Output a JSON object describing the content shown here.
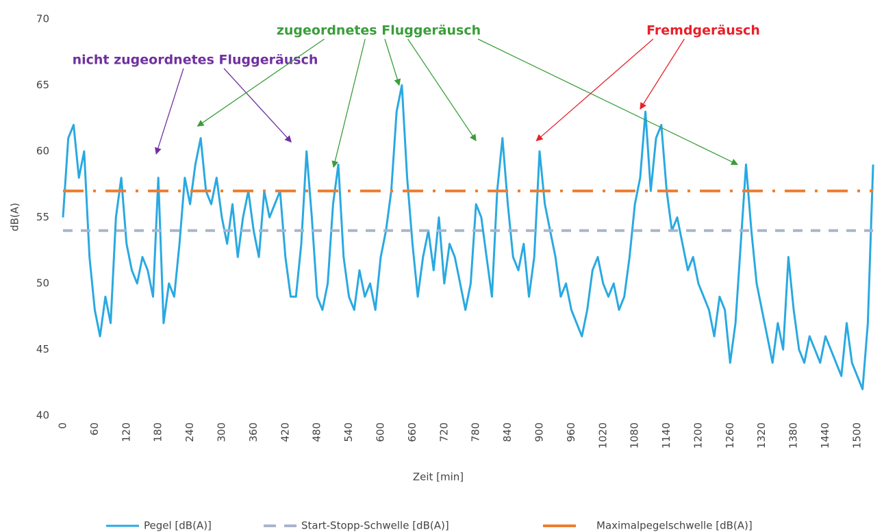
{
  "chart_data": {
    "type": "line",
    "x_label": "Zeit [min]",
    "y_label": "dB(A)",
    "xlim": [
      0,
      1535
    ],
    "ylim": [
      40,
      70
    ],
    "xticks": [
      0,
      60,
      120,
      180,
      240,
      300,
      360,
      420,
      480,
      540,
      600,
      660,
      720,
      780,
      840,
      900,
      960,
      1020,
      1080,
      1140,
      1200,
      1260,
      1320,
      1380,
      1440,
      1500
    ],
    "yticks": [
      40,
      45,
      50,
      55,
      60,
      65,
      70
    ],
    "grid": false,
    "legend": "bottom",
    "series": [
      {
        "name": "Pegel [dB(A)]",
        "color": "#29a9e1",
        "style": "solid",
        "x": [
          0,
          10,
          20,
          30,
          40,
          50,
          60,
          70,
          80,
          90,
          100,
          110,
          120,
          130,
          140,
          150,
          160,
          170,
          180,
          190,
          200,
          210,
          220,
          230,
          240,
          250,
          260,
          270,
          280,
          290,
          300,
          310,
          320,
          330,
          340,
          350,
          360,
          370,
          380,
          390,
          400,
          410,
          420,
          430,
          440,
          450,
          460,
          470,
          480,
          490,
          500,
          510,
          520,
          530,
          540,
          550,
          560,
          570,
          580,
          590,
          600,
          610,
          620,
          630,
          640,
          650,
          660,
          670,
          680,
          690,
          700,
          710,
          720,
          730,
          740,
          750,
          760,
          770,
          780,
          790,
          800,
          810,
          820,
          830,
          840,
          850,
          860,
          870,
          880,
          890,
          900,
          910,
          920,
          930,
          940,
          950,
          960,
          970,
          980,
          990,
          1000,
          1010,
          1020,
          1030,
          1040,
          1050,
          1060,
          1070,
          1080,
          1090,
          1100,
          1110,
          1120,
          1130,
          1140,
          1150,
          1160,
          1170,
          1180,
          1190,
          1200,
          1210,
          1220,
          1230,
          1240,
          1250,
          1260,
          1270,
          1280,
          1290,
          1300,
          1310,
          1320,
          1330,
          1340,
          1350,
          1360,
          1370,
          1380,
          1390,
          1400,
          1410,
          1420,
          1430,
          1440,
          1450,
          1460,
          1470,
          1480,
          1490,
          1500,
          1510,
          1520,
          1530
        ],
        "values": [
          55,
          61,
          62,
          58,
          60,
          52,
          48,
          46,
          49,
          47,
          55,
          58,
          53,
          51,
          50,
          52,
          51,
          49,
          58,
          47,
          50,
          49,
          53,
          58,
          56,
          59,
          61,
          57,
          56,
          58,
          55,
          53,
          56,
          52,
          55,
          57,
          54,
          52,
          57,
          55,
          56,
          57,
          52,
          49,
          49,
          53,
          60,
          55,
          49,
          48,
          50,
          56,
          59,
          52,
          49,
          48,
          51,
          49,
          50,
          48,
          52,
          54,
          57,
          63,
          65,
          58,
          53,
          49,
          52,
          54,
          51,
          55,
          50,
          53,
          52,
          50,
          48,
          50,
          56,
          55,
          52,
          49,
          57,
          61,
          56,
          52,
          51,
          53,
          49,
          52,
          60,
          56,
          54,
          52,
          49,
          50,
          48,
          47,
          46,
          48,
          51,
          52,
          50,
          49,
          50,
          48,
          49,
          52,
          56,
          58,
          63,
          57,
          61,
          62,
          57,
          54,
          55,
          53,
          51,
          52,
          50,
          49,
          48,
          46,
          49,
          48,
          44,
          47,
          53,
          59,
          54,
          50,
          48,
          46,
          44,
          47,
          45,
          52,
          48,
          45,
          44,
          46,
          45,
          44,
          46,
          45,
          44,
          43,
          47,
          44,
          43,
          42,
          47,
          59
        ]
      },
      {
        "name": "Start-Stopp-Schwelle [dB(A)]",
        "color": "#a9b4cc",
        "style": "dashed",
        "x": [
          0,
          1530
        ],
        "values": [
          54,
          54
        ]
      },
      {
        "name": "Maximalpegelschwelle [dB(A)]",
        "color": "#ed7d31",
        "style": "dash-dot",
        "x": [
          0,
          1530
        ],
        "values": [
          57,
          57
        ]
      }
    ],
    "annotations": [
      {
        "text": "nicht zugeordnetes Fluggeräusch",
        "color": "#7030a0",
        "targets": [
          {
            "x": 176,
            "y": 59.8
          },
          {
            "x": 431,
            "y": 60.7
          }
        ]
      },
      {
        "text": "zugeordnetes Fluggeräusch",
        "color": "#3a9d3a",
        "targets": [
          {
            "x": 254,
            "y": 61.9
          },
          {
            "x": 511,
            "y": 58.8
          },
          {
            "x": 635,
            "y": 65.0
          },
          {
            "x": 780,
            "y": 60.8
          },
          {
            "x": 1274,
            "y": 59.0
          }
        ]
      },
      {
        "text": "Fremdgeräusch",
        "color": "#e8202a",
        "targets": [
          {
            "x": 894,
            "y": 60.8
          },
          {
            "x": 1090,
            "y": 63.2
          }
        ]
      }
    ]
  }
}
